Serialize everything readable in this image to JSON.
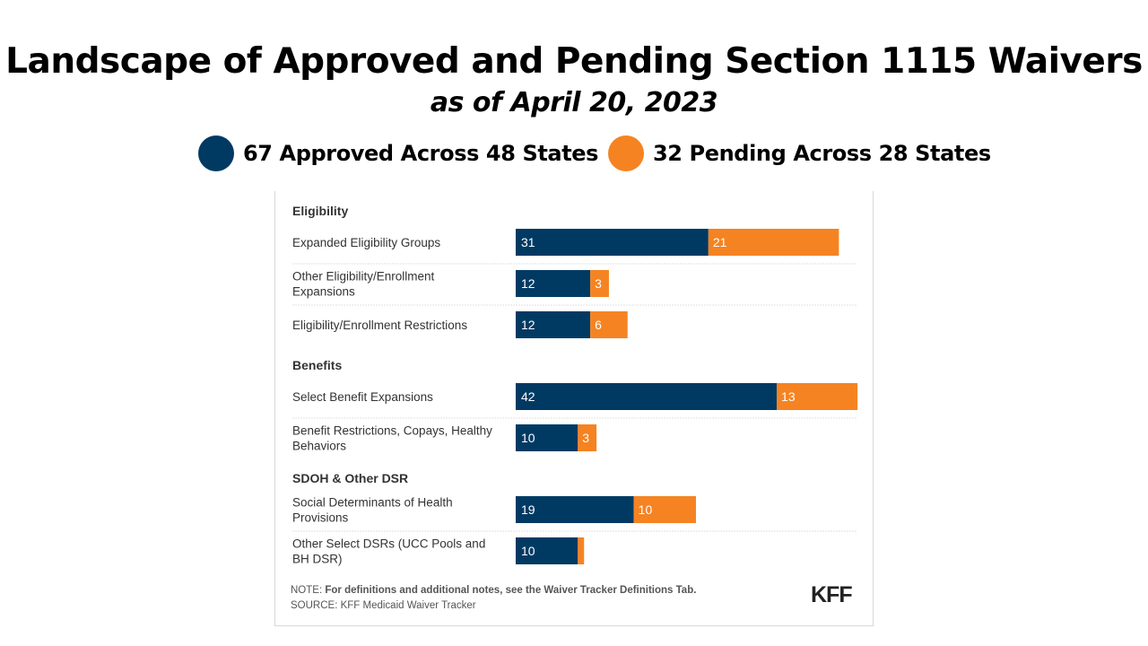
{
  "title": "Landscape of Approved and Pending Section 1115 Waivers",
  "subtitle": "as of April 20, 2023",
  "legend": {
    "approved": {
      "label": "67 Approved Across 48 States",
      "color": "#003a63"
    },
    "pending": {
      "label": "32 Pending Across 28 States",
      "color": "#f58322"
    }
  },
  "chart_data": {
    "type": "bar",
    "orientation": "horizontal",
    "stacked": true,
    "series": [
      {
        "name": "Approved",
        "color": "#003a63"
      },
      {
        "name": "Pending",
        "color": "#f58322"
      }
    ],
    "groups": [
      {
        "name": "Eligibility",
        "rows": [
          {
            "label": [
              "Expanded Eligibility Groups"
            ],
            "approved": 31,
            "pending": 21,
            "approved_text": "31",
            "pending_text": "21"
          },
          {
            "label": [
              "Other Eligibility/Enrollment",
              "Expansions"
            ],
            "approved": 12,
            "pending": 3,
            "approved_text": "12",
            "pending_text": "3"
          },
          {
            "label": [
              "Eligibility/Enrollment Restrictions"
            ],
            "approved": 12,
            "pending": 6,
            "approved_text": "12",
            "pending_text": "6"
          }
        ]
      },
      {
        "name": "Benefits",
        "rows": [
          {
            "label": [
              "Select Benefit Expansions"
            ],
            "approved": 42,
            "pending": 13,
            "approved_text": "42",
            "pending_text": "13"
          },
          {
            "label": [
              "Benefit Restrictions, Copays, Healthy",
              "Behaviors"
            ],
            "approved": 10,
            "pending": 3,
            "approved_text": "10",
            "pending_text": "3"
          }
        ]
      },
      {
        "name": "SDOH & Other DSR",
        "rows": [
          {
            "label": [
              "Social Determinants of Health",
              "Provisions"
            ],
            "approved": 19,
            "pending": 10,
            "approved_text": "19",
            "pending_text": "10"
          },
          {
            "label": [
              "Other Select DSRs (UCC Pools and",
              "BH DSR)"
            ],
            "approved": 10,
            "pending": 1,
            "approved_text": "10",
            "pending_text": ""
          }
        ]
      }
    ],
    "xlim": [
      0,
      55
    ],
    "grid": false
  },
  "note": {
    "prefix": "NOTE: ",
    "text": "For definitions and additional notes, see the Waiver Tracker Definitions Tab.",
    "source": "SOURCE: KFF Medicaid Waiver Tracker"
  },
  "logo": "KFF"
}
